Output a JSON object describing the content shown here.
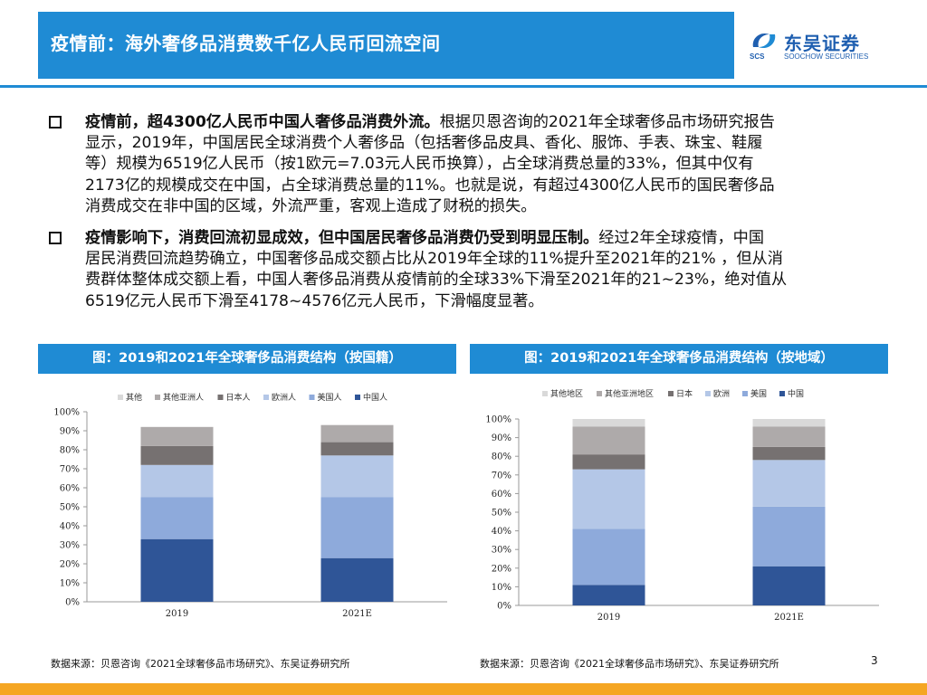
{
  "header": {
    "title": "疫情前：海外奢侈品消费数千亿人民币回流空间",
    "logo_cn": "东吴证券",
    "logo_en": "SOOCHOW SECURITIES",
    "logo_abbr": "SCS"
  },
  "bullets": [
    {
      "lead": "疫情前，超4300亿人民币中国人奢侈品消费外流。",
      "body": "根据贝恩咨询的2021年全球奢侈品市场研究报告\n显示，2019年，中国居民全球消费个人奢侈品（包括奢侈品皮具、香化、服饰、手表、珠宝、鞋履\n等）规模为6519亿人民币（按1欧元=7.03元人民币换算），占全球消费总量的33%，但其中仅有\n2173亿的规模成交在中国，占全球消费总量的11%。也就是说，有超过4300亿人民币的国民奢侈品\n消费成交在非中国的区域，外流严重，客观上造成了财税的损失。"
    },
    {
      "lead": "疫情影响下，消费回流初显成效，但中国居民奢侈品消费仍受到明显压制。",
      "body": "经过2年全球疫情，中国\n居民消费回流趋势确立，中国奢侈品成交额占比从2019年全球的11%提升至2021年的21% ，但从消\n费群体整体成交额上看，中国人奢侈品消费从疫情前的全球33%下滑至2021年的21~23%，绝对值从\n6519亿元人民币下滑至4178~4576亿元人民币，下滑幅度显著。"
    }
  ],
  "panels": [
    {
      "title": "图：2019和2021年全球奢侈品消费结构（按国籍）",
      "source": "数据来源：贝恩咨询《2021全球奢侈品市场研究》、东吴证券研究所"
    },
    {
      "title": "图：2019和2021年全球奢侈品消费结构（按地域）",
      "source": "数据来源：贝恩咨询《2021全球奢侈品市场研究》、东吴证券研究所"
    }
  ],
  "page_number": "3",
  "chart_data": [
    {
      "type": "bar",
      "stacked": true,
      "categories": [
        "2019",
        "2021E"
      ],
      "series": [
        {
          "name": "中国人",
          "values": [
            33,
            23
          ],
          "color": "#2f5597"
        },
        {
          "name": "美国人",
          "values": [
            22,
            32
          ],
          "color": "#8eaadb"
        },
        {
          "name": "欧洲人",
          "values": [
            17,
            22
          ],
          "color": "#b4c7e7"
        },
        {
          "name": "日本人",
          "values": [
            10,
            7
          ],
          "color": "#767171"
        },
        {
          "name": "其他亚洲人",
          "values": [
            10,
            9
          ],
          "color": "#aeaaaa"
        },
        {
          "name": "其他",
          "values": [
            0,
            0
          ],
          "color": "#d9d9d9"
        }
      ],
      "legend_order": [
        "其他",
        "其他亚洲人",
        "日本人",
        "欧洲人",
        "美国人",
        "中国人"
      ],
      "yticks": [
        "0%",
        "10%",
        "20%",
        "30%",
        "40%",
        "50%",
        "60%",
        "70%",
        "80%",
        "90%",
        "100%"
      ],
      "ylim": [
        0,
        100
      ],
      "legend_position": "top"
    },
    {
      "type": "bar",
      "stacked": true,
      "categories": [
        "2019",
        "2021E"
      ],
      "series": [
        {
          "name": "中国",
          "values": [
            11,
            21
          ],
          "color": "#2f5597"
        },
        {
          "name": "美国",
          "values": [
            30,
            32
          ],
          "color": "#8eaadb"
        },
        {
          "name": "欧洲",
          "values": [
            32,
            25
          ],
          "color": "#b4c7e7"
        },
        {
          "name": "日本",
          "values": [
            8,
            7
          ],
          "color": "#767171"
        },
        {
          "name": "其他亚洲地区",
          "values": [
            15,
            11
          ],
          "color": "#aeaaaa"
        },
        {
          "name": "其他地区",
          "values": [
            4,
            4
          ],
          "color": "#d9d9d9"
        }
      ],
      "legend_order": [
        "其他地区",
        "其他亚洲地区",
        "日本",
        "欧洲",
        "美国",
        "中国"
      ],
      "yticks": [
        "0%",
        "10%",
        "20%",
        "30%",
        "40%",
        "50%",
        "60%",
        "70%",
        "80%",
        "90%",
        "100%"
      ],
      "ylim": [
        0,
        100
      ],
      "legend_position": "top"
    }
  ]
}
